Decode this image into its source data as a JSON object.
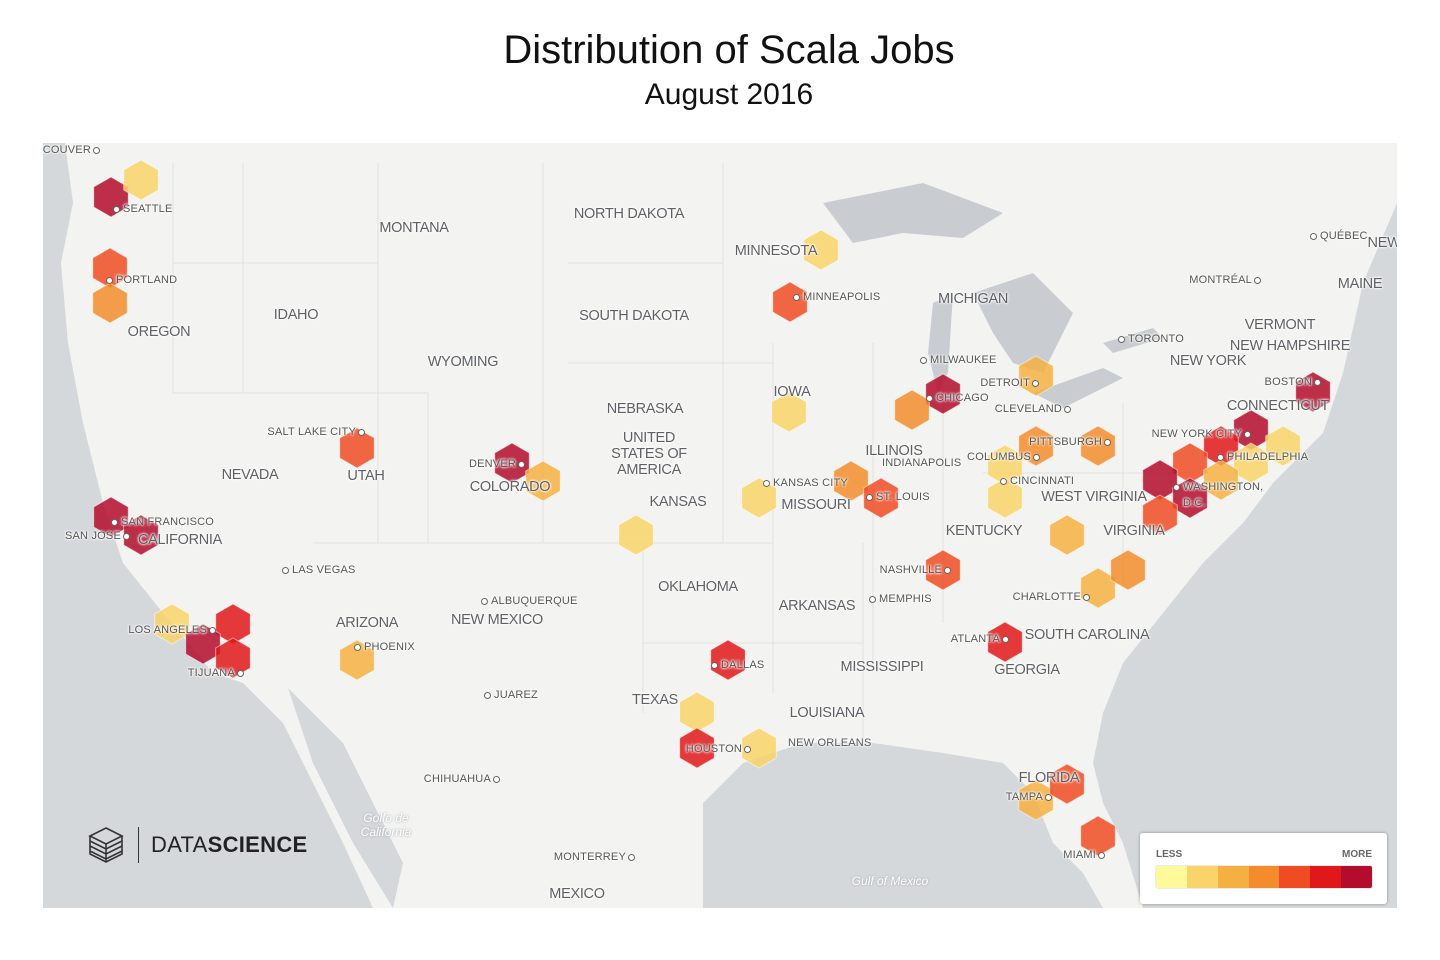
{
  "title": "Distribution of Scala Jobs",
  "subtitle": "August 2016",
  "legend": {
    "less_label": "LESS",
    "more_label": "MORE",
    "colors": [
      "#fefa9c",
      "#f9d46a",
      "#f5b042",
      "#f28c2c",
      "#ef4c24",
      "#e0171b",
      "#b30c2c"
    ]
  },
  "logo": {
    "text_light": "DATA",
    "text_bold": "SCIENCE"
  },
  "hex_levels": [
    7,
    2,
    5,
    4,
    2,
    5,
    5,
    7,
    3,
    7,
    7,
    2,
    6,
    7,
    6,
    3,
    2,
    2,
    4,
    5,
    2,
    6,
    2,
    6,
    2,
    7,
    4,
    3,
    2,
    2,
    4,
    4,
    5,
    3,
    3,
    4,
    6,
    3,
    5,
    5,
    7,
    7,
    6,
    5,
    2,
    2,
    3,
    7,
    7,
    5
  ],
  "labels": {
    "cities": [
      "VANCOUVER",
      "SEATTLE",
      "PORTLAND",
      "SALT LAKE CITY",
      "SAN FRANCISCO",
      "SAN JOSE",
      "LAS VEGAS",
      "LOS ANGELES",
      "TIJUANA",
      "PHOENIX",
      "ALBUQUERQUE",
      "JUAREZ",
      "CHIHUAHUA",
      "MONTERREY",
      "DENVER",
      "KANSAS CITY",
      "ST. LOUIS",
      "MINNEAPOLIS",
      "MILWAUKEE",
      "CHICAGO",
      "DETROIT",
      "CLEVELAND",
      "TORONTO",
      "MONTRÉAL",
      "QUÉBEC",
      "BOSTON",
      "NEW YORK CITY",
      "PHILADELPHIA",
      "WASHINGTON,",
      "D.C.",
      "PITTSBURGH",
      "COLUMBUS",
      "CINCINNATI",
      "INDIANAPOLIS",
      "NASHVILLE",
      "MEMPHIS",
      "CHARLOTTE",
      "ATLANTA",
      "DALLAS",
      "HOUSTON",
      "NEW ORLEANS",
      "TAMPA",
      "MIAMI"
    ],
    "states": [
      "MONTANA",
      "NORTH DAKOTA",
      "MINNESOTA",
      "MICHIGAN",
      "IDAHO",
      "OREGON",
      "SOUTH DAKOTA",
      "WYOMING",
      "NEBRASKA",
      "IOWA",
      "ILLINOIS",
      "UNITED",
      "STATES OF",
      "AMERICA",
      "NEVADA",
      "UTAH",
      "COLORADO",
      "KANSAS",
      "MISSOURI",
      "CALIFORNIA",
      "KENTUCKY",
      "WEST VIRGINIA",
      "VIRGINIA",
      "OKLAHOMA",
      "ARKANSAS",
      "ARIZONA",
      "NEW MEXICO",
      "TEXAS",
      "LOUISIANA",
      "MISSISSIPPI",
      "GEORGIA",
      "SOUTH CAROLINA",
      "FLORIDA",
      "MEXICO",
      "NEW YORK",
      "VERMONT",
      "NEW HAMPSHIRE",
      "MAINE",
      "CONNECTICUT",
      "NEW"
    ],
    "water": [
      "Golfo de",
      "California",
      "Gulf of Mexico"
    ]
  }
}
